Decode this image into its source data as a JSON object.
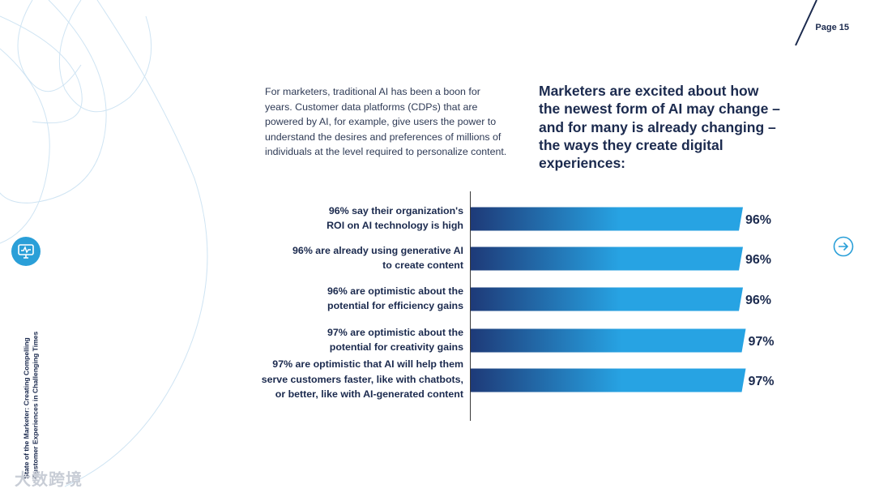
{
  "page": {
    "label": "Page 15"
  },
  "intro_text": "For marketers, traditional AI has been a boon for years. Customer data platforms (CDPs) that are powered by AI, for example, give users the power to understand the desires and preferences of millions of individuals at the level required to personalize content.",
  "headline": "Marketers are excited about how the newest form of AI may change – and for many is already changing – the ways they create digital experiences:",
  "side_title": {
    "line1": "State of the Marketer: Creating Compelling",
    "line2": "Customer Experiences in Challenging Times"
  },
  "watermark": "大数跨境",
  "icons": {
    "logo": "monitor-chart-icon",
    "next": "arrow-right-circle-icon"
  },
  "colors": {
    "navy": "#1b2a4e",
    "bar_start": "#1e3a78",
    "bar_end": "#27a3e3",
    "accent": "#2a9fd8"
  },
  "chart_data": {
    "type": "bar",
    "orientation": "horizontal",
    "categories": [
      "96% say their organization's ROI on AI technology is high",
      "96% are already using generative AI to create content",
      "96% are optimistic about the potential for efficiency gains",
      "97% are optimistic about the potential for creativity gains",
      "97% are optimistic that AI will help them serve customers faster, like with chatbots, or better, like with AI-generated content"
    ],
    "category_lines": [
      [
        "96% say their organization's",
        "ROI on AI technology is high"
      ],
      [
        "96% are already using generative AI",
        "to create content"
      ],
      [
        "96% are optimistic about the",
        "potential for efficiency gains"
      ],
      [
        "97% are optimistic about the",
        "potential for creativity gains"
      ],
      [
        "97% are optimistic that AI will help them",
        "serve customers faster, like with chatbots,",
        "or better, like with AI-generated content"
      ]
    ],
    "values": [
      96,
      96,
      96,
      97,
      97
    ],
    "value_labels": [
      "96%",
      "96%",
      "96%",
      "97%",
      "97%"
    ],
    "xlim": [
      0,
      100
    ],
    "grid": false,
    "legend": "none"
  }
}
